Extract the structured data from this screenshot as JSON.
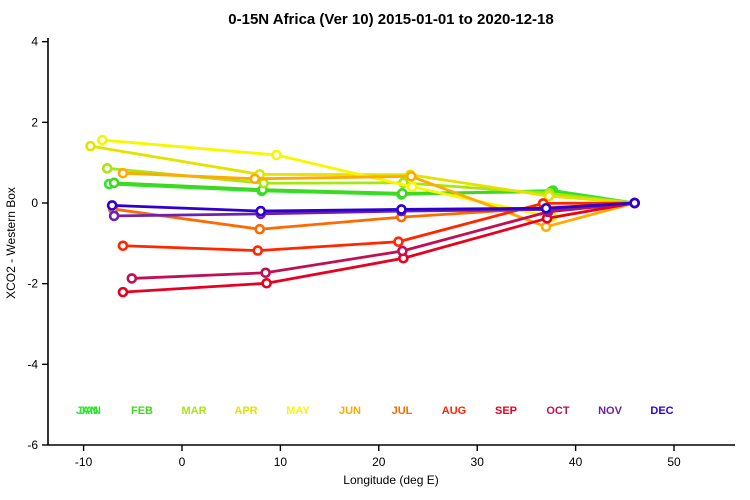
{
  "title": "0-15N Africa (Ver 10)   2015-01-01 to 2020-12-18",
  "chart_data": {
    "type": "line",
    "title": "0-15N Africa (Ver 10)   2015-01-01 to 2020-12-18",
    "xlabel": "Longitude (deg E)",
    "ylabel": "XCO2 - Western Box",
    "xlim": [
      -13.6,
      56.0
    ],
    "ylim": [
      -6,
      4
    ],
    "x_ticks": [
      -10,
      0,
      10,
      20,
      30,
      40,
      50
    ],
    "y_ticks": [
      4,
      2,
      0,
      -2,
      -4,
      -6
    ],
    "grid": false,
    "marker": "open-circle",
    "legend_position": "inline-bottom-row",
    "note": "All monthly series converge to value 0 at the reference longitude ~46E",
    "series": [
      {
        "name": "JAN",
        "color": "#2ce62c",
        "points": [
          [
            -7.4,
            0.47
          ],
          [
            8.1,
            0.3
          ],
          [
            22.3,
            0.21
          ],
          [
            37.7,
            0.31
          ],
          [
            46.0,
            0.0
          ]
        ]
      },
      {
        "name": "FEB",
        "color": "#3fd81f",
        "points": [
          [
            -6.9,
            0.5
          ],
          [
            8.2,
            0.33
          ],
          [
            22.4,
            0.24
          ],
          [
            37.5,
            0.28
          ],
          [
            46.0,
            0.0
          ]
        ]
      },
      {
        "name": "MAR",
        "color": "#a8e612",
        "points": [
          [
            -7.6,
            0.86
          ],
          [
            8.3,
            0.49
          ],
          [
            22.5,
            0.5
          ],
          [
            37.3,
            0.24
          ],
          [
            46.0,
            0.0
          ]
        ]
      },
      {
        "name": "APR",
        "color": "#e3e300",
        "points": [
          [
            -9.3,
            1.41
          ],
          [
            7.9,
            0.71
          ],
          [
            23.2,
            0.7
          ],
          [
            37.3,
            0.17
          ],
          [
            46.0,
            0.0
          ]
        ]
      },
      {
        "name": "MAY",
        "color": "#f7f700",
        "points": [
          [
            -8.1,
            1.56
          ],
          [
            9.6,
            1.19
          ],
          [
            23.4,
            0.4
          ],
          [
            37.6,
            -0.35
          ],
          [
            46.0,
            0.0
          ]
        ]
      },
      {
        "name": "JUN",
        "color": "#ffaa00",
        "points": [
          [
            -6.0,
            0.74
          ],
          [
            7.4,
            0.6
          ],
          [
            23.3,
            0.66
          ],
          [
            37.0,
            -0.59
          ],
          [
            46.0,
            0.0
          ]
        ]
      },
      {
        "name": "JUL",
        "color": "#ff6a00",
        "points": [
          [
            -7.0,
            -0.15
          ],
          [
            7.9,
            -0.65
          ],
          [
            22.3,
            -0.35
          ],
          [
            37.0,
            -0.12
          ],
          [
            46.0,
            0.0
          ]
        ]
      },
      {
        "name": "AUG",
        "color": "#ff2600",
        "points": [
          [
            -6.0,
            -1.06
          ],
          [
            7.7,
            -1.18
          ],
          [
            22.0,
            -0.96
          ],
          [
            36.7,
            -0.01
          ],
          [
            46.0,
            0.0
          ]
        ]
      },
      {
        "name": "SEP",
        "color": "#e80020",
        "points": [
          [
            -6.0,
            -2.21
          ],
          [
            8.6,
            -1.99
          ],
          [
            22.5,
            -1.37
          ],
          [
            37.1,
            -0.38
          ],
          [
            46.0,
            0.0
          ]
        ]
      },
      {
        "name": "OCT",
        "color": "#c01055",
        "points": [
          [
            -5.1,
            -1.87
          ],
          [
            8.5,
            -1.73
          ],
          [
            22.4,
            -1.19
          ],
          [
            37.2,
            -0.22
          ],
          [
            46.0,
            0.0
          ]
        ]
      },
      {
        "name": "NOV",
        "color": "#6d22ae",
        "points": [
          [
            -6.9,
            -0.32
          ],
          [
            8.0,
            -0.27
          ],
          [
            22.3,
            -0.2
          ],
          [
            37.1,
            -0.16
          ],
          [
            46.0,
            0.0
          ]
        ]
      },
      {
        "name": "DEC",
        "color": "#3000cc",
        "points": [
          [
            -7.1,
            -0.06
          ],
          [
            8.0,
            -0.2
          ],
          [
            22.3,
            -0.16
          ],
          [
            37.0,
            -0.13
          ],
          [
            46.0,
            0.0
          ]
        ]
      }
    ],
    "month_label_row": {
      "labels": [
        "JAN",
        "FEB",
        "MAR",
        "APR",
        "MAY",
        "JUN",
        "JUL",
        "AUG",
        "SEP",
        "OCT",
        "NOV",
        "DEC"
      ],
      "first_label_overprinted": true
    }
  },
  "axis_color": "#000000"
}
